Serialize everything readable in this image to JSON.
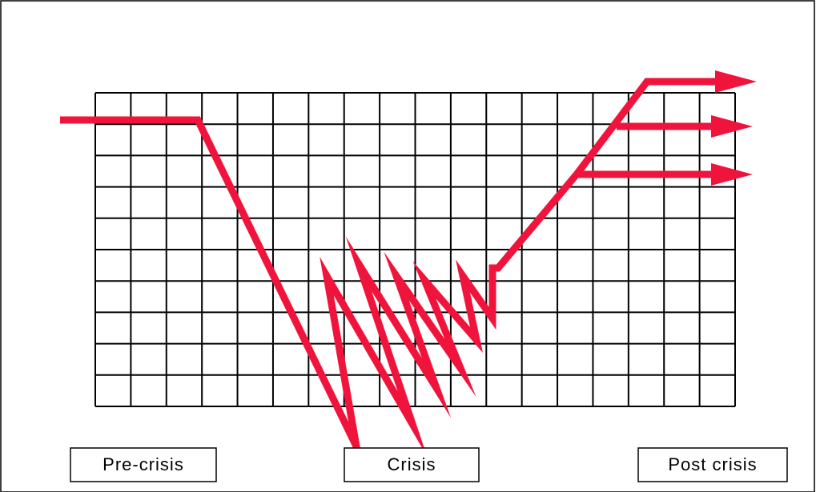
{
  "phases": [
    "Pre-crisis",
    "Crisis",
    "Post crisis"
  ]
}
